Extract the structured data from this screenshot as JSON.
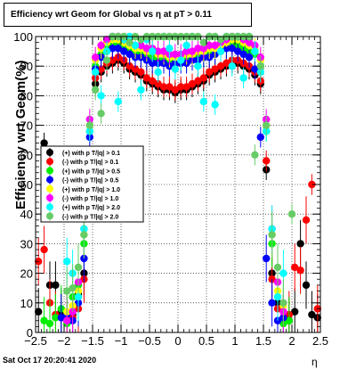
{
  "chart_data": {
    "type": "scatter",
    "title": "Efficiency wrt Geom for Global vs   η at pT > 0.11",
    "xlabel": "η",
    "ylabel": "Efficiency wrt Geom(%)",
    "xlim": [
      -2.5,
      2.5
    ],
    "ylim": [
      0,
      100
    ],
    "x_ticks": [
      -2.5,
      -2,
      -1.5,
      -1,
      -0.5,
      0,
      0.5,
      1,
      1.5,
      2,
      2.5
    ],
    "x_tick_labels": [
      "−2.5",
      "−2",
      "−1.5",
      "−1",
      "−0.5",
      "0",
      "0.5",
      "1",
      "1.5",
      "2",
      "2.5"
    ],
    "y_ticks": [
      0,
      10,
      20,
      30,
      40,
      50,
      60,
      70,
      80,
      90,
      100
    ],
    "y_tick_labels": [
      "0",
      "10",
      "20",
      "30",
      "40",
      "50",
      "60",
      "70",
      "80",
      "90",
      "100"
    ],
    "grid": true,
    "legend_position": "left-middle",
    "series": [
      {
        "name": "(+) with p T/|q| > 0.1",
        "color": "#000000",
        "x": [
          -2.45,
          -2.35,
          -2.25,
          -2.15,
          -2.05,
          -1.95,
          -1.85,
          -1.75,
          -1.65,
          -1.55,
          -1.45,
          -1.35,
          -1.25,
          -1.15,
          -1.05,
          -0.95,
          -0.85,
          -0.75,
          -0.65,
          -0.55,
          -0.45,
          -0.35,
          -0.25,
          -0.15,
          -0.05,
          0.05,
          0.15,
          0.25,
          0.35,
          0.45,
          0.55,
          0.65,
          0.75,
          0.85,
          0.95,
          1.05,
          1.15,
          1.25,
          1.35,
          1.45,
          1.55,
          1.65,
          1.75,
          1.85,
          1.95,
          2.05,
          2.15,
          2.25,
          2.35,
          2.45
        ],
        "y": [
          7,
          64,
          16,
          16,
          7,
          5,
          6,
          13,
          20,
          55,
          84,
          88,
          90,
          91,
          92,
          91,
          89,
          88,
          87,
          85,
          84,
          83,
          82,
          82,
          81,
          82,
          82,
          83,
          84,
          85,
          87,
          88,
          89,
          90,
          91,
          91,
          90,
          89,
          87,
          84,
          55,
          20,
          10,
          5,
          4,
          7,
          30,
          16,
          6,
          5
        ]
      },
      {
        "name": "(-) with p T/|q| > 0.1",
        "color": "#ff0000",
        "x": [
          -2.45,
          -2.35,
          -2.25,
          -2.15,
          -2.05,
          -1.95,
          -1.85,
          -1.75,
          -1.65,
          -1.55,
          -1.45,
          -1.35,
          -1.25,
          -1.15,
          -1.05,
          -0.95,
          -0.85,
          -0.75,
          -0.65,
          -0.55,
          -0.45,
          -0.35,
          -0.25,
          -0.15,
          -0.05,
          0.05,
          0.15,
          0.25,
          0.35,
          0.45,
          0.55,
          0.65,
          0.75,
          0.85,
          0.95,
          1.05,
          1.15,
          1.25,
          1.35,
          1.45,
          1.55,
          1.65,
          1.75,
          1.85,
          1.95,
          2.05,
          2.15,
          2.25,
          2.35,
          2.45
        ],
        "y": [
          24,
          28,
          10,
          6,
          5,
          4,
          5,
          8,
          18,
          58,
          86,
          89,
          91,
          92,
          93,
          92,
          90,
          89,
          88,
          86,
          85,
          84,
          83,
          83,
          82,
          83,
          83,
          84,
          85,
          86,
          88,
          89,
          90,
          91,
          92,
          92,
          91,
          90,
          88,
          85,
          58,
          18,
          8,
          5,
          6,
          22,
          21,
          38,
          50,
          8
        ]
      },
      {
        "name": "(+) with p T/|q| > 0.5",
        "color": "#00ee00",
        "x": [
          -2.35,
          -2.25,
          -2.15,
          -2.05,
          -1.95,
          -1.85,
          -1.75,
          -1.65,
          -1.55,
          -1.45,
          -1.35,
          -1.25,
          -1.15,
          -1.05,
          -0.95,
          -0.85,
          -0.75,
          -0.65,
          -0.55,
          -0.45,
          -0.35,
          -0.25,
          -0.15,
          -0.05,
          0.05,
          0.15,
          0.25,
          0.35,
          0.45,
          0.55,
          0.65,
          0.75,
          0.85,
          0.95,
          1.05,
          1.15,
          1.25,
          1.35,
          1.45,
          1.55,
          1.65,
          1.75,
          1.85,
          1.95
        ],
        "y": [
          4,
          3,
          5,
          8,
          3,
          12,
          16,
          30,
          68,
          90,
          94,
          96,
          97,
          97,
          96,
          95,
          94,
          94,
          93,
          93,
          92,
          92,
          92,
          91,
          92,
          92,
          92,
          93,
          93,
          94,
          94,
          95,
          96,
          97,
          97,
          96,
          95,
          94,
          90,
          68,
          30,
          12,
          3,
          4
        ]
      },
      {
        "name": "(-) with p T/|q| > 0.5",
        "color": "#0000ff",
        "x": [
          -2.05,
          -1.95,
          -1.85,
          -1.75,
          -1.65,
          -1.55,
          -1.45,
          -1.35,
          -1.25,
          -1.15,
          -1.05,
          -0.95,
          -0.85,
          -0.75,
          -0.65,
          -0.55,
          -0.45,
          -0.35,
          -0.25,
          -0.15,
          -0.05,
          0.05,
          0.15,
          0.25,
          0.35,
          0.45,
          0.55,
          0.65,
          0.75,
          0.85,
          0.95,
          1.05,
          1.15,
          1.25,
          1.35,
          1.45,
          1.55,
          1.65,
          1.75,
          1.85
        ],
        "y": [
          5,
          6,
          4,
          10,
          25,
          66,
          89,
          93,
          95,
          96,
          96,
          95,
          94,
          93,
          93,
          92,
          91,
          91,
          91,
          90,
          91,
          91,
          91,
          92,
          92,
          93,
          93,
          94,
          95,
          96,
          96,
          95,
          94,
          93,
          89,
          66,
          25,
          10,
          4,
          5
        ]
      },
      {
        "name": "(+) with p T/|q| > 1.0",
        "color": "#ffff00",
        "x": [
          -1.95,
          -1.85,
          -1.75,
          -1.65,
          -1.55,
          -1.45,
          -1.35,
          -1.25,
          -1.15,
          -1.05,
          -0.95,
          -0.85,
          -0.75,
          -0.65,
          -0.55,
          -0.45,
          -0.35,
          -0.25,
          -0.15,
          -0.05,
          0.05,
          0.15,
          0.25,
          0.35,
          0.45,
          0.55,
          0.65,
          0.75,
          0.85,
          0.95,
          1.05,
          1.15,
          1.25,
          1.35,
          1.45,
          1.55,
          1.65,
          1.75,
          1.85
        ],
        "y": [
          7,
          9,
          14,
          33,
          70,
          92,
          96,
          98,
          99,
          99,
          98,
          97,
          96,
          96,
          95,
          95,
          94,
          94,
          93,
          93,
          93,
          94,
          94,
          95,
          95,
          96,
          96,
          97,
          98,
          99,
          99,
          98,
          97,
          96,
          92,
          70,
          33,
          14,
          9
        ]
      },
      {
        "name": "(-) with p T/|q| > 1.0",
        "color": "#ff00ff",
        "x": [
          -1.95,
          -1.85,
          -1.75,
          -1.65,
          -1.55,
          -1.45,
          -1.35,
          -1.25,
          -1.15,
          -1.05,
          -0.95,
          -0.85,
          -0.75,
          -0.65,
          -0.55,
          -0.45,
          -0.35,
          -0.25,
          -0.15,
          -0.05,
          0.05,
          0.15,
          0.25,
          0.35,
          0.45,
          0.55,
          0.65,
          0.75,
          0.85,
          0.95,
          1.05,
          1.15,
          1.25,
          1.35,
          1.45,
          1.55,
          1.65,
          1.75,
          1.85
        ],
        "y": [
          4,
          7,
          17,
          35,
          72,
          93,
          97,
          99,
          100,
          100,
          99,
          98,
          97,
          97,
          96,
          96,
          95,
          95,
          94,
          94,
          94,
          95,
          95,
          96,
          96,
          97,
          97,
          98,
          99,
          100,
          100,
          99,
          98,
          97,
          93,
          72,
          35,
          17,
          7
        ]
      },
      {
        "name": "(+) with p T/|q| > 2.0",
        "color": "#00ffff",
        "x": [
          -1.95,
          -1.85,
          -1.75,
          -1.65,
          -1.55,
          -1.45,
          -1.35,
          -1.25,
          -1.15,
          -1.05,
          -0.95,
          -0.85,
          -0.75,
          -0.65,
          -0.55,
          -0.45,
          -0.35,
          -0.25,
          -0.15,
          -0.05,
          0.05,
          0.15,
          0.25,
          0.35,
          0.45,
          0.55,
          0.65,
          0.75,
          0.85,
          0.95,
          1.05,
          1.15,
          1.25,
          1.35,
          1.45,
          1.55,
          1.65,
          1.75,
          1.85
        ],
        "y": [
          24,
          20,
          12,
          35,
          68,
          88,
          80,
          95,
          100,
          78,
          99,
          100,
          97,
          82,
          99,
          95,
          88,
          100,
          96,
          89,
          92,
          97,
          100,
          90,
          78,
          100,
          77,
          95,
          100,
          90,
          100,
          86,
          100,
          95,
          88,
          68,
          35,
          12,
          20
        ]
      },
      {
        "name": "(-) with p T/|q| > 2.0",
        "color": "#66cc66",
        "x": [
          -1.95,
          -1.85,
          -1.75,
          -1.65,
          -1.55,
          -1.45,
          -1.35,
          -1.25,
          -1.15,
          -1.05,
          -0.95,
          -0.85,
          -0.75,
          -0.65,
          -0.55,
          -0.45,
          -0.35,
          -0.25,
          -0.15,
          -0.05,
          0.05,
          0.15,
          0.25,
          0.35,
          0.45,
          0.55,
          0.65,
          0.75,
          0.85,
          0.95,
          1.05,
          1.15,
          1.25,
          1.35,
          1.45,
          1.55,
          1.65,
          1.75,
          1.85,
          2.0
        ],
        "y": [
          14,
          15,
          22,
          33,
          70,
          82,
          74,
          92,
          100,
          100,
          100,
          98,
          100,
          99,
          100,
          100,
          100,
          100,
          100,
          100,
          100,
          100,
          100,
          100,
          98,
          100,
          100,
          99,
          100,
          100,
          100,
          100,
          100,
          60,
          90,
          70,
          33,
          22,
          10,
          40
        ]
      }
    ]
  },
  "footer": {
    "datestamp": "Sat Oct 17 20:20:41 2020"
  }
}
